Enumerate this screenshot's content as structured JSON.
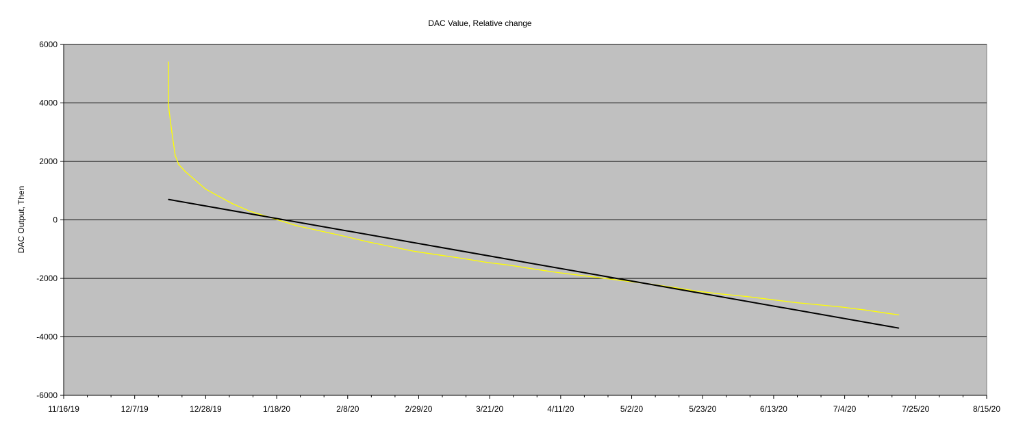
{
  "chart_data": {
    "type": "line",
    "title": "DAC Value, Relative change",
    "xlabel": "",
    "ylabel": "DAC Output, Then",
    "x_type": "date",
    "xlim": [
      "2019-11-16",
      "2020-08-15"
    ],
    "ylim": [
      -6000,
      6000
    ],
    "x_ticks": [
      "11/16/19",
      "12/7/19",
      "12/28/19",
      "1/18/20",
      "2/8/20",
      "2/29/20",
      "3/21/20",
      "4/11/20",
      "5/2/20",
      "5/23/20",
      "6/13/20",
      "7/4/20",
      "7/25/20",
      "8/15/20"
    ],
    "y_ticks": [
      "6000",
      "4000",
      "2000",
      "0",
      "-2000",
      "-4000",
      "-6000"
    ],
    "grid": {
      "horizontal": true,
      "vertical": false
    },
    "plot_background": "#c0c0c0",
    "series": [
      {
        "color": "#ffff00",
        "x": [
          "2019-12-17",
          "2019-12-17",
          "2019-12-17",
          "2019-12-18",
          "2019-12-19",
          "2019-12-20",
          "2019-12-22",
          "2019-12-25",
          "2019-12-28",
          "2020-01-01",
          "2020-01-05",
          "2020-01-10",
          "2020-01-17",
          "2020-01-24",
          "2020-01-31",
          "2020-02-07",
          "2020-02-14",
          "2020-02-21",
          "2020-02-28",
          "2020-03-06",
          "2020-03-13",
          "2020-03-20",
          "2020-03-27",
          "2020-04-03",
          "2020-04-10",
          "2020-04-17",
          "2020-04-24",
          "2020-05-01",
          "2020-05-08",
          "2020-05-15",
          "2020-05-22",
          "2020-05-29",
          "2020-06-05",
          "2020-06-12",
          "2020-06-19",
          "2020-06-26",
          "2020-07-03",
          "2020-07-10",
          "2020-07-17",
          "2020-07-20"
        ],
        "y": [
          5400,
          4600,
          3900,
          3000,
          2200,
          1900,
          1650,
          1350,
          1050,
          800,
          550,
          300,
          50,
          -200,
          -380,
          -560,
          -750,
          -920,
          -1080,
          -1200,
          -1320,
          -1450,
          -1550,
          -1680,
          -1800,
          -1900,
          -2000,
          -2100,
          -2200,
          -2320,
          -2450,
          -2540,
          -2620,
          -2720,
          -2820,
          -2900,
          -2980,
          -3080,
          -3200,
          -3250
        ]
      },
      {
        "color": "#000000",
        "x": [
          "2019-12-17",
          "2020-07-20"
        ],
        "y": [
          700,
          -3700
        ]
      }
    ]
  }
}
